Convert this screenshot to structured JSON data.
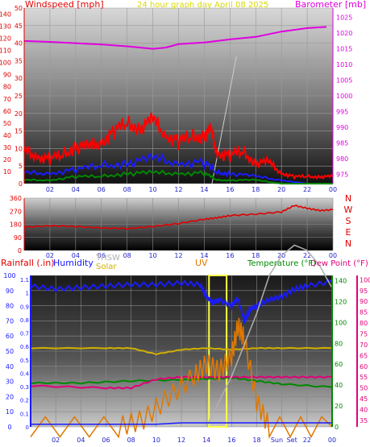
{
  "colors": {
    "wind_label": "#e00000",
    "title": "#d8d800",
    "baro": "#e000e0",
    "wind_gust": "#ff0000",
    "wind_avg": "#1a1aff",
    "wind_low": "#008800",
    "wind_dir": "#e00000",
    "humidity": "#1a1aff",
    "temperature": "#008800",
    "dewpoint": "#e0007a",
    "rainfall": "#1a1aff",
    "uv": "#e07800",
    "solar": "#d0b000",
    "thsw": "#b0b0b0",
    "sun_window": "#ffff44"
  },
  "chart_data": [
    {
      "type": "line",
      "title": "24 hour graph day   April 08 2025",
      "ylabel_left_knots": "Windspeed [mph]",
      "ylabel_right": "Barometer [mb]",
      "x_ticks": [
        "02",
        "04",
        "06",
        "08",
        "10",
        "12",
        "14",
        "16",
        "18",
        "20",
        "22",
        "00"
      ],
      "y_left_mph_ticks": [
        0,
        5,
        10,
        15,
        20,
        25,
        30,
        35,
        40,
        45,
        50
      ],
      "y_left_kmh_ticks": [
        0,
        10,
        20,
        30,
        40,
        50,
        60,
        70,
        80,
        90,
        100,
        110,
        120,
        130,
        140
      ],
      "y_right_ticks": [
        975,
        980,
        985,
        990,
        995,
        1000,
        1005,
        1010,
        1015,
        1020,
        1025
      ],
      "series": [
        {
          "name": "Barometer",
          "x": [
            0,
            2,
            4,
            6,
            8,
            10,
            11,
            12,
            14,
            16,
            18,
            20,
            22,
            23.5
          ],
          "values": [
            1017.5,
            1017.2,
            1016.8,
            1016.4,
            1015.8,
            1015,
            1015.4,
            1016.5,
            1017,
            1018,
            1018.8,
            1020.5,
            1021.6,
            1022
          ]
        },
        {
          "name": "Gust",
          "x": [
            0,
            1,
            2,
            3,
            4,
            5,
            6,
            7,
            8,
            9,
            10,
            11,
            12,
            13,
            14,
            14.5,
            15,
            16,
            17,
            18,
            19,
            20,
            21,
            22,
            23,
            24
          ],
          "values": [
            9,
            8,
            7,
            8,
            11,
            10,
            12,
            15,
            17,
            16,
            18,
            14,
            12,
            13,
            14,
            15,
            9,
            8,
            9,
            6,
            6,
            3,
            2,
            2,
            2,
            2
          ]
        },
        {
          "name": "Average",
          "x": [
            0,
            2,
            4,
            6,
            8,
            10,
            12,
            14,
            15,
            16,
            18,
            20,
            22,
            24
          ],
          "values": [
            3,
            3,
            4,
            5,
            6,
            7,
            6,
            6,
            3,
            3,
            2,
            1,
            0,
            0
          ]
        },
        {
          "name": "Low",
          "x": [
            0,
            2,
            4,
            6,
            8,
            10,
            12,
            14,
            15,
            16,
            18,
            20,
            22,
            24
          ],
          "values": [
            1,
            1,
            2,
            2,
            3,
            3,
            3,
            3,
            1,
            1,
            1,
            0,
            0,
            0
          ]
        }
      ]
    },
    {
      "type": "line",
      "ylabel_right": "N W S E N",
      "x_ticks": [
        "02",
        "04",
        "06",
        "08",
        "10",
        "12",
        "14",
        "16",
        "18",
        "20",
        "22",
        "00"
      ],
      "y_ticks": [
        0,
        90,
        180,
        270,
        360
      ],
      "compass": [
        "N",
        "W",
        "S",
        "E",
        "N"
      ],
      "series": [
        {
          "name": "Wind Direction",
          "x": [
            0,
            2,
            4,
            6,
            8,
            10,
            12,
            14,
            15,
            16,
            18,
            20,
            21,
            22,
            23,
            24
          ],
          "values": [
            160,
            170,
            165,
            155,
            150,
            165,
            185,
            215,
            225,
            240,
            250,
            265,
            310,
            290,
            275,
            280
          ]
        }
      ]
    },
    {
      "type": "line",
      "labels": {
        "rainfall": "Rainfall (.in)",
        "humidity": "Humidity",
        "thsw": "THSW",
        "solar": "Solar",
        "uv": "UV",
        "temperature": "Temperature (°F)",
        "dewpoint": "Dew Point (°F)"
      },
      "x_ticks": [
        "02",
        "04",
        "06",
        "08",
        "10",
        "12",
        "14",
        "16",
        "18",
        "Sun",
        "Set",
        "22",
        "00"
      ],
      "sunset_label": "Sun Set",
      "y_hum_ticks": [
        0,
        10,
        20,
        30,
        40,
        50,
        60,
        70,
        80,
        90,
        100
      ],
      "y_rain_ticks": [
        0,
        0.1,
        0.2,
        0.3,
        0.4,
        0.5,
        0.6,
        0.7,
        0.8,
        0.9,
        1,
        1.1
      ],
      "y_temp_ticks": [
        0,
        20,
        40,
        60,
        80,
        100,
        120,
        140
      ],
      "y_dew_ticks": [
        35,
        40,
        45,
        50,
        55,
        60,
        65,
        70,
        75,
        80,
        85,
        90,
        95,
        100
      ],
      "series": [
        {
          "name": "Humidity",
          "x": [
            0,
            2,
            4,
            6,
            8,
            10,
            12,
            13.5,
            14,
            14.5,
            15,
            16,
            16.5,
            17,
            17.5,
            18,
            19,
            20,
            21,
            22,
            24
          ],
          "values": [
            93,
            91,
            92,
            93,
            94,
            94,
            95,
            94,
            86,
            82,
            84,
            80,
            85,
            70,
            78,
            80,
            84,
            86,
            91,
            93,
            96
          ]
        },
        {
          "name": "Temperature",
          "x": [
            0,
            4,
            8,
            12,
            14,
            16,
            18,
            20,
            24
          ],
          "values": [
            42,
            42,
            44,
            45,
            46,
            47,
            44,
            41,
            38
          ]
        },
        {
          "name": "Dew Point",
          "x": [
            0,
            6,
            8,
            10,
            12,
            14,
            16,
            18,
            20,
            22,
            24
          ],
          "values": [
            51,
            50,
            50,
            54,
            55,
            55,
            55,
            55,
            55,
            55,
            55
          ]
        },
        {
          "name": "Solar",
          "x": [
            0,
            6,
            8,
            10,
            12,
            14,
            16,
            18,
            20,
            24
          ],
          "values": [
            52,
            52,
            52,
            48,
            51,
            52,
            51,
            52,
            52,
            52
          ]
        },
        {
          "name": "UV",
          "x": [
            0,
            7,
            9,
            11,
            13,
            14,
            15,
            16,
            16.5,
            17,
            18,
            19,
            24
          ],
          "values": [
            0,
            0,
            3,
            12,
            20,
            25,
            22,
            28,
            40,
            35,
            10,
            0,
            0
          ]
        },
        {
          "name": "THSW",
          "x": [
            14,
            16,
            18,
            19,
            20,
            21,
            22,
            23,
            24
          ],
          "values": [
            0,
            20,
            45,
            60,
            68,
            72,
            70,
            64,
            55
          ]
        },
        {
          "name": "Rainfall",
          "x": [
            0,
            6,
            8,
            10,
            12,
            14,
            16,
            18,
            20,
            22,
            24
          ],
          "values": [
            0.02,
            0.02,
            0.02,
            0.02,
            0.03,
            0.03,
            0.03,
            0.03,
            0.03,
            0.03,
            0.03
          ]
        }
      ]
    }
  ]
}
